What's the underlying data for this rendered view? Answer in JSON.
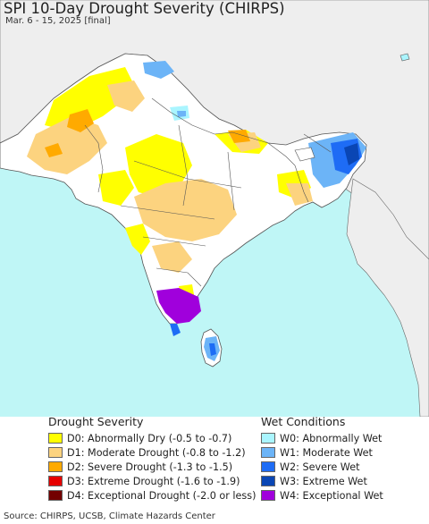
{
  "title": "SPI 10-Day Drought Severity (CHIRPS)",
  "subtitle": "Mar. 6 - 15, 2025 [final]",
  "colors": {
    "ocean": "#bff6f6",
    "land_outside": "#eeeeee",
    "land_normal": "#ffffff",
    "border": "#555555"
  },
  "legend": {
    "drought": {
      "heading": "Drought Severity",
      "items": [
        {
          "code": "D0",
          "label": "D0: Abnormally Dry (-0.5 to -0.7)",
          "color": "#ffff00"
        },
        {
          "code": "D1",
          "label": "D1: Moderate Drought (-0.8 to -1.2)",
          "color": "#fcd37f"
        },
        {
          "code": "D2",
          "label": "D2: Severe Drought (-1.3 to -1.5)",
          "color": "#ffaa00"
        },
        {
          "code": "D3",
          "label": "D3: Extreme Drought (-1.6 to -1.9)",
          "color": "#e60000"
        },
        {
          "code": "D4",
          "label": "D4: Exceptional Drought (-2.0 or less)",
          "color": "#730000"
        }
      ]
    },
    "wet": {
      "heading": "Wet Conditions",
      "items": [
        {
          "code": "W0",
          "label": "W0: Abnormally Wet",
          "color": "#aaf5ff"
        },
        {
          "code": "W1",
          "label": "W1: Moderate Wet",
          "color": "#6cb4f7"
        },
        {
          "code": "W2",
          "label": "W2: Severe Wet",
          "color": "#1e6cf5"
        },
        {
          "code": "W3",
          "label": "W3: Extreme Wet",
          "color": "#0a46b4"
        },
        {
          "code": "W4",
          "label": "W4: Exceptional Wet",
          "color": "#a000dc"
        }
      ]
    }
  },
  "source": "Source: CHIRPS, UCSB, Climate Hazards Center"
}
